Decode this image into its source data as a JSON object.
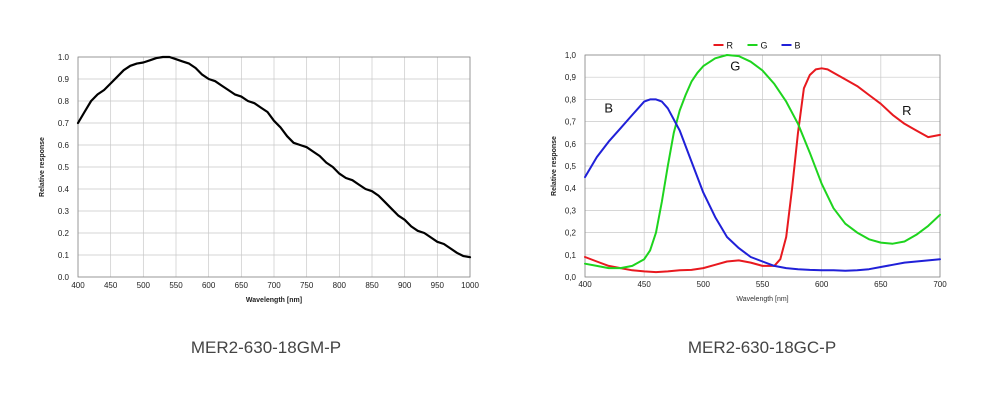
{
  "captions": {
    "left": "MER2-630-18GM-P",
    "right": "MER2-630-18GC-P"
  },
  "chart_data": [
    {
      "type": "line",
      "xlabel": "Wavelength [nm]",
      "ylabel": "Relative response",
      "xlim": [
        400,
        1000
      ],
      "ylim": [
        0,
        1.0
      ],
      "x_ticks": [
        "400",
        "450",
        "500",
        "550",
        "600",
        "650",
        "700",
        "750",
        "800",
        "850",
        "900",
        "950",
        "1000"
      ],
      "y_ticks": [
        "0.0",
        "0.1",
        "0.2",
        "0.3",
        "0.4",
        "0.5",
        "0.6",
        "0.7",
        "0.8",
        "0.9",
        "1.0"
      ],
      "grid": true,
      "colors": [
        "#000000"
      ],
      "series": [
        {
          "x": [
            400,
            410,
            420,
            430,
            440,
            450,
            460,
            470,
            480,
            490,
            500,
            510,
            520,
            530,
            540,
            550,
            560,
            570,
            580,
            590,
            600,
            610,
            620,
            630,
            640,
            650,
            660,
            670,
            680,
            690,
            700,
            710,
            720,
            730,
            740,
            750,
            760,
            770,
            780,
            790,
            800,
            810,
            820,
            830,
            840,
            850,
            860,
            870,
            880,
            890,
            900,
            910,
            920,
            930,
            940,
            950,
            960,
            970,
            980,
            990,
            1000
          ],
          "values": [
            0.7,
            0.75,
            0.8,
            0.83,
            0.85,
            0.88,
            0.91,
            0.94,
            0.96,
            0.97,
            0.975,
            0.985,
            0.995,
            1.0,
            1.0,
            0.99,
            0.98,
            0.97,
            0.95,
            0.92,
            0.9,
            0.89,
            0.87,
            0.85,
            0.83,
            0.82,
            0.8,
            0.79,
            0.77,
            0.75,
            0.71,
            0.68,
            0.64,
            0.61,
            0.6,
            0.59,
            0.57,
            0.55,
            0.52,
            0.5,
            0.47,
            0.45,
            0.44,
            0.42,
            0.4,
            0.39,
            0.37,
            0.34,
            0.31,
            0.28,
            0.26,
            0.23,
            0.21,
            0.2,
            0.18,
            0.16,
            0.15,
            0.13,
            0.11,
            0.095,
            0.09
          ]
        }
      ]
    },
    {
      "type": "line",
      "xlabel": "Wavelength [nm]",
      "ylabel": "Relative response",
      "xlim": [
        400,
        700
      ],
      "ylim": [
        0,
        1.0
      ],
      "x_ticks": [
        "400",
        "450",
        "500",
        "550",
        "600",
        "650",
        "700"
      ],
      "y_ticks": [
        "0,0",
        "0,1",
        "0,2",
        "0,3",
        "0,4",
        "0,5",
        "0,6",
        "0,7",
        "0,8",
        "0,9",
        "1,0"
      ],
      "grid": true,
      "legend": {
        "placement": "top-center",
        "entries": [
          "R",
          "G",
          "B"
        ]
      },
      "series": [
        {
          "name": "R",
          "color": "#e8191f",
          "x": [
            400,
            410,
            420,
            430,
            440,
            450,
            460,
            470,
            480,
            490,
            500,
            510,
            520,
            530,
            540,
            550,
            560,
            565,
            570,
            575,
            580,
            585,
            590,
            595,
            600,
            605,
            610,
            620,
            630,
            640,
            650,
            660,
            670,
            680,
            690,
            700
          ],
          "values": [
            0.09,
            0.07,
            0.05,
            0.04,
            0.03,
            0.025,
            0.022,
            0.025,
            0.03,
            0.032,
            0.04,
            0.055,
            0.07,
            0.075,
            0.065,
            0.05,
            0.05,
            0.08,
            0.18,
            0.4,
            0.65,
            0.85,
            0.91,
            0.935,
            0.94,
            0.935,
            0.92,
            0.89,
            0.86,
            0.82,
            0.78,
            0.73,
            0.69,
            0.66,
            0.63,
            0.64
          ]
        },
        {
          "name": "G",
          "color": "#1ed41e",
          "x": [
            400,
            410,
            420,
            430,
            440,
            450,
            455,
            460,
            465,
            470,
            475,
            480,
            485,
            490,
            495,
            500,
            510,
            520,
            530,
            540,
            550,
            560,
            570,
            580,
            590,
            600,
            610,
            620,
            630,
            640,
            650,
            660,
            670,
            680,
            690,
            700
          ],
          "values": [
            0.06,
            0.05,
            0.04,
            0.04,
            0.05,
            0.08,
            0.12,
            0.2,
            0.34,
            0.5,
            0.65,
            0.75,
            0.82,
            0.88,
            0.92,
            0.95,
            0.985,
            1.0,
            0.995,
            0.97,
            0.93,
            0.87,
            0.79,
            0.69,
            0.56,
            0.42,
            0.31,
            0.24,
            0.2,
            0.17,
            0.155,
            0.15,
            0.16,
            0.19,
            0.23,
            0.28
          ]
        },
        {
          "name": "B",
          "color": "#2020d8",
          "x": [
            400,
            410,
            420,
            430,
            440,
            450,
            455,
            460,
            465,
            470,
            480,
            490,
            500,
            510,
            520,
            530,
            540,
            550,
            560,
            570,
            580,
            590,
            600,
            610,
            620,
            630,
            640,
            650,
            660,
            670,
            680,
            690,
            700
          ],
          "values": [
            0.45,
            0.54,
            0.61,
            0.67,
            0.73,
            0.79,
            0.8,
            0.8,
            0.79,
            0.76,
            0.66,
            0.52,
            0.38,
            0.27,
            0.18,
            0.13,
            0.09,
            0.07,
            0.05,
            0.04,
            0.035,
            0.032,
            0.03,
            0.03,
            0.028,
            0.03,
            0.035,
            0.045,
            0.055,
            0.065,
            0.07,
            0.075,
            0.08
          ]
        }
      ],
      "annotations": [
        {
          "text": "B",
          "x": 420,
          "y": 0.74
        },
        {
          "text": "G",
          "x": 527,
          "y": 0.93
        },
        {
          "text": "R",
          "x": 672,
          "y": 0.73
        }
      ]
    }
  ]
}
